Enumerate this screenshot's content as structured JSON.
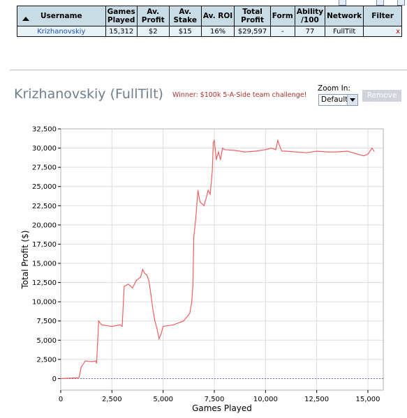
{
  "stats_table": {
    "headers": [
      "Username",
      "Games Played",
      "Av. Profit",
      "Av. Stake",
      "Av. ROI",
      "Total Profit",
      "Form",
      "Ability /100",
      "Network",
      "Filter"
    ],
    "row": {
      "username": "Krizhanovskiy",
      "games_played": "15,312",
      "av_profit": "$2",
      "av_stake": "$15",
      "av_roi": "16%",
      "total_profit": "$29,597",
      "form": "-",
      "ability": "77",
      "network": "FullTilt",
      "filter": "x"
    }
  },
  "header": {
    "title": "Krizhanovskiy (FullTilt)",
    "winner": "Winner: $100k 5-A-Side team challenge!",
    "zoom_label": "Zoom In:",
    "zoom_value": "Default",
    "remove_label": "Remove"
  },
  "colors": {
    "line": "#f06060",
    "grid": "#dcdcdc",
    "zero_line": "#7a6fb0",
    "header_bg": "#c8dce6",
    "row_bg": "#e7f2f7"
  },
  "chart_data": {
    "type": "line",
    "xlabel": "Games Played",
    "ylabel": "Total Profit ($)",
    "xlim": [
      0,
      15750
    ],
    "ylim": [
      -1500,
      32500
    ],
    "xticks": [
      0,
      2500,
      5000,
      7500,
      10000,
      12500,
      15000
    ],
    "xtick_labels": [
      "0",
      "2,500",
      "5,000",
      "7,500",
      "10,000",
      "12,500",
      "15,000"
    ],
    "yticks": [
      0,
      2500,
      5000,
      7500,
      10000,
      12500,
      15000,
      17500,
      20000,
      22500,
      25000,
      27500,
      30000,
      32500
    ],
    "ytick_labels": [
      "0",
      "2,500",
      "5,000",
      "7,500",
      "10,000",
      "12,500",
      "15,000",
      "17,500",
      "20,000",
      "22,500",
      "25,000",
      "27,500",
      "30,000",
      "32,500"
    ],
    "grid": true,
    "x": [
      0,
      400,
      800,
      900,
      1000,
      1200,
      1500,
      1700,
      1750,
      1800,
      1850,
      2000,
      2500,
      2900,
      3000,
      3100,
      3300,
      3500,
      3700,
      3900,
      4000,
      4100,
      4200,
      4300,
      4400,
      4500,
      4600,
      4700,
      4800,
      4900,
      5000,
      5500,
      6000,
      6300,
      6400,
      6450,
      6500,
      6600,
      6700,
      6800,
      7000,
      7200,
      7300,
      7400,
      7450,
      7500,
      7600,
      7700,
      7800,
      7900,
      8000,
      8500,
      9000,
      9500,
      10000,
      10300,
      10500,
      10600,
      10700,
      10800,
      11000,
      11500,
      12000,
      12500,
      13000,
      13500,
      14000,
      14500,
      14800,
      15000,
      15200,
      15300
    ],
    "values": [
      0,
      50,
      100,
      200,
      1500,
      2300,
      2200,
      2300,
      2000,
      4500,
      7500,
      7000,
      6800,
      7000,
      6800,
      12000,
      12300,
      11800,
      12800,
      13200,
      14200,
      13700,
      13500,
      12800,
      11000,
      9000,
      7500,
      6500,
      5200,
      5800,
      6800,
      7000,
      7500,
      8500,
      10000,
      12000,
      18500,
      21000,
      24500,
      23000,
      22500,
      24500,
      24000,
      27000,
      30700,
      31000,
      28500,
      29500,
      28500,
      30000,
      29800,
      29700,
      29500,
      29600,
      29800,
      30000,
      29800,
      31000,
      30200,
      29600,
      29600,
      29500,
      29400,
      29600,
      29500,
      29500,
      29600,
      29200,
      29000,
      29200,
      30000,
      29600
    ]
  }
}
